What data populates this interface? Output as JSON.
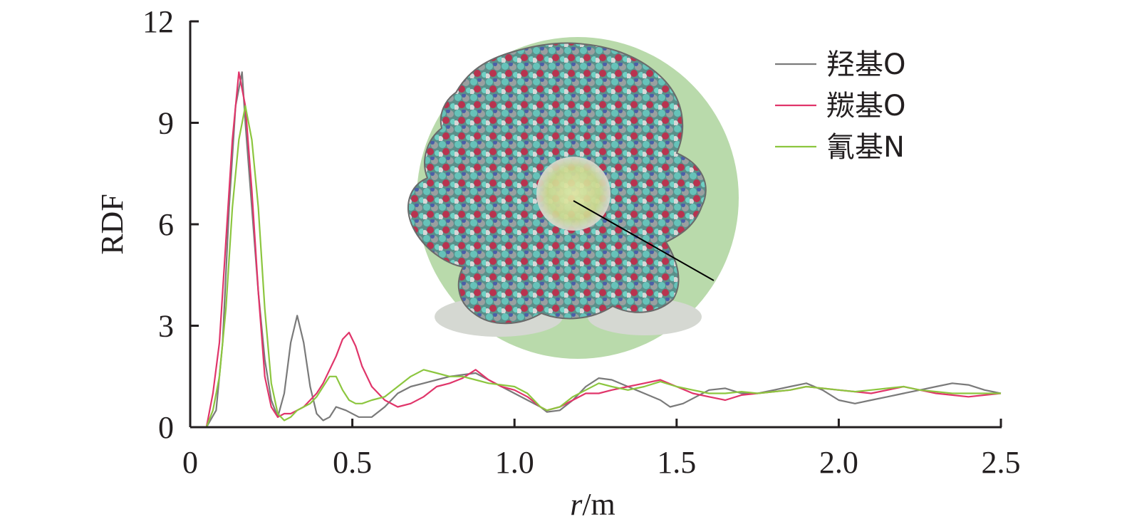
{
  "chart_data": {
    "type": "line",
    "xlabel_italic": "r",
    "xlabel_rest": "/m",
    "ylabel": "RDF",
    "xlim": [
      0,
      2.5
    ],
    "ylim": [
      0,
      12
    ],
    "x_ticks": [
      {
        "value": 0,
        "label": "0"
      },
      {
        "value": 0.5,
        "label": "0.5"
      },
      {
        "value": 1.0,
        "label": "1.0"
      },
      {
        "value": 1.5,
        "label": "1.5"
      },
      {
        "value": 2.0,
        "label": "2.0"
      },
      {
        "value": 2.5,
        "label": "2.5"
      }
    ],
    "y_ticks": [
      {
        "value": 0,
        "label": "0"
      },
      {
        "value": 3,
        "label": "3"
      },
      {
        "value": 6,
        "label": "6"
      },
      {
        "value": 9,
        "label": "9"
      },
      {
        "value": 12,
        "label": "12"
      }
    ],
    "grid": false,
    "legend_position": "top-right",
    "inset": "molecular model image (spherical micelle with radius marker)",
    "inset_colors": {
      "sphere": "#b5d8a6",
      "core": "#d7e39b",
      "cyan": "#5fb8b0",
      "red": "#b8334f",
      "blue": "#4a5fa8",
      "gray": "#8a8a8a"
    },
    "series": [
      {
        "name": "羟基O",
        "color": "#7a7a7a",
        "x": [
          0.05,
          0.08,
          0.1,
          0.12,
          0.14,
          0.16,
          0.17,
          0.19,
          0.21,
          0.23,
          0.25,
          0.27,
          0.29,
          0.31,
          0.33,
          0.35,
          0.37,
          0.39,
          0.41,
          0.43,
          0.45,
          0.48,
          0.52,
          0.56,
          0.6,
          0.64,
          0.68,
          0.72,
          0.76,
          0.8,
          0.84,
          0.88,
          0.92,
          0.96,
          1.0,
          1.04,
          1.08,
          1.1,
          1.14,
          1.18,
          1.22,
          1.26,
          1.3,
          1.35,
          1.4,
          1.45,
          1.48,
          1.52,
          1.56,
          1.6,
          1.65,
          1.7,
          1.75,
          1.8,
          1.85,
          1.9,
          1.95,
          2.0,
          2.05,
          2.1,
          2.15,
          2.2,
          2.25,
          2.3,
          2.35,
          2.4,
          2.45,
          2.5
        ],
        "y": [
          0,
          0.5,
          2.5,
          6.5,
          9.5,
          10.5,
          9.0,
          6.5,
          4.0,
          2.0,
          0.8,
          0.3,
          1.0,
          2.5,
          3.3,
          2.5,
          1.2,
          0.4,
          0.2,
          0.3,
          0.6,
          0.5,
          0.3,
          0.3,
          0.6,
          1.0,
          1.2,
          1.3,
          1.4,
          1.5,
          1.55,
          1.6,
          1.4,
          1.2,
          1.0,
          0.8,
          0.6,
          0.45,
          0.5,
          0.8,
          1.2,
          1.45,
          1.4,
          1.2,
          1.0,
          0.8,
          0.6,
          0.7,
          0.9,
          1.1,
          1.15,
          1.0,
          1.0,
          1.1,
          1.2,
          1.3,
          1.1,
          0.8,
          0.7,
          0.8,
          0.9,
          1.0,
          1.1,
          1.2,
          1.3,
          1.25,
          1.1,
          1.0
        ]
      },
      {
        "name": "羰基O",
        "color": "#e0356a",
        "x": [
          0.05,
          0.07,
          0.09,
          0.11,
          0.13,
          0.15,
          0.17,
          0.19,
          0.21,
          0.23,
          0.25,
          0.27,
          0.29,
          0.31,
          0.33,
          0.35,
          0.37,
          0.39,
          0.41,
          0.43,
          0.45,
          0.47,
          0.49,
          0.51,
          0.53,
          0.56,
          0.6,
          0.64,
          0.68,
          0.72,
          0.76,
          0.8,
          0.84,
          0.88,
          0.92,
          0.96,
          1.0,
          1.04,
          1.08,
          1.1,
          1.14,
          1.18,
          1.22,
          1.26,
          1.3,
          1.35,
          1.4,
          1.45,
          1.5,
          1.55,
          1.6,
          1.65,
          1.7,
          1.75,
          1.8,
          1.85,
          1.9,
          1.95,
          2.0,
          2.05,
          2.1,
          2.15,
          2.2,
          2.25,
          2.3,
          2.35,
          2.4,
          2.45,
          2.5
        ],
        "y": [
          0,
          1.0,
          2.5,
          5.5,
          8.5,
          10.5,
          9.5,
          7.0,
          4.0,
          1.5,
          0.6,
          0.3,
          0.4,
          0.4,
          0.5,
          0.6,
          0.8,
          1.0,
          1.3,
          1.7,
          2.1,
          2.6,
          2.8,
          2.4,
          1.8,
          1.2,
          0.8,
          0.6,
          0.7,
          0.9,
          1.2,
          1.3,
          1.45,
          1.7,
          1.4,
          1.2,
          1.1,
          0.9,
          0.6,
          0.5,
          0.6,
          0.8,
          1.0,
          1.0,
          1.1,
          1.2,
          1.3,
          1.4,
          1.2,
          1.0,
          0.9,
          0.8,
          0.95,
          1.0,
          1.05,
          1.1,
          1.2,
          1.15,
          1.1,
          1.05,
          1.0,
          1.1,
          1.2,
          1.1,
          1.0,
          0.95,
          0.9,
          0.95,
          1.0
        ]
      },
      {
        "name": "氰基N",
        "color": "#8cc63f",
        "x": [
          0.05,
          0.07,
          0.09,
          0.11,
          0.13,
          0.15,
          0.17,
          0.19,
          0.21,
          0.23,
          0.25,
          0.27,
          0.29,
          0.31,
          0.33,
          0.35,
          0.37,
          0.39,
          0.41,
          0.43,
          0.45,
          0.47,
          0.49,
          0.51,
          0.53,
          0.56,
          0.6,
          0.64,
          0.68,
          0.72,
          0.76,
          0.8,
          0.84,
          0.88,
          0.92,
          0.96,
          1.0,
          1.04,
          1.08,
          1.1,
          1.14,
          1.18,
          1.22,
          1.26,
          1.3,
          1.35,
          1.4,
          1.45,
          1.5,
          1.55,
          1.6,
          1.65,
          1.7,
          1.75,
          1.8,
          1.85,
          1.9,
          1.95,
          2.0,
          2.05,
          2.1,
          2.15,
          2.2,
          2.25,
          2.3,
          2.35,
          2.4,
          2.45,
          2.5
        ],
        "y": [
          0,
          0.5,
          1.5,
          3.5,
          6.5,
          8.5,
          9.5,
          8.5,
          6.5,
          3.5,
          1.3,
          0.4,
          0.2,
          0.3,
          0.5,
          0.6,
          0.7,
          0.9,
          1.2,
          1.5,
          1.5,
          1.1,
          0.8,
          0.7,
          0.7,
          0.8,
          0.9,
          1.2,
          1.5,
          1.7,
          1.6,
          1.5,
          1.5,
          1.4,
          1.3,
          1.25,
          1.2,
          1.0,
          0.6,
          0.5,
          0.6,
          0.9,
          1.1,
          1.3,
          1.2,
          1.1,
          1.2,
          1.35,
          1.2,
          1.1,
          1.0,
          1.0,
          1.05,
          1.0,
          1.05,
          1.1,
          1.2,
          1.15,
          1.1,
          1.05,
          1.1,
          1.15,
          1.2,
          1.1,
          1.05,
          1.0,
          1.0,
          1.0,
          1.0
        ]
      }
    ]
  }
}
